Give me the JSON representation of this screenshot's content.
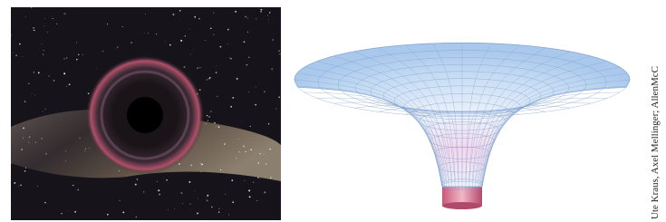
{
  "credit": "Ute Kraus, Axel Mellinger; AllenMcC"
}
